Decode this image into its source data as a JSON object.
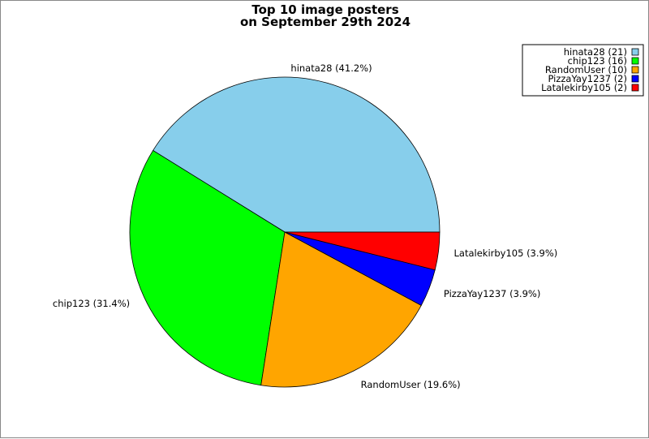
{
  "chart_data": {
    "type": "pie",
    "title": "Top 10 image posters\non September 29th 2024",
    "title_lines": [
      "Top 10 image posters",
      "on September 29th 2024"
    ],
    "categories": [
      "hinata28",
      "chip123",
      "RandomUser",
      "PizzaYay1237",
      "Latalekirby105"
    ],
    "values": [
      21,
      16,
      10,
      2,
      2
    ],
    "slice_labels": [
      "hinata28 (41.2%)",
      "chip123 (31.4%)",
      "RandomUser (19.6%)",
      "PizzaYay1237 (3.9%)",
      "Latalekirby105 (3.9%)"
    ],
    "legend_entries": [
      "hinata28 (21)",
      "chip123 (16)",
      "RandomUser (10)",
      "PizzaYay1237 (2)",
      "Latalekirby105 (2)"
    ],
    "colors": [
      "#87ceeb",
      "#00ff00",
      "#ffa500",
      "#0000ff",
      "#ff0000"
    ],
    "start_angle_deg": 0,
    "direction": "counterclockwise",
    "legend_placement": "top-right"
  }
}
